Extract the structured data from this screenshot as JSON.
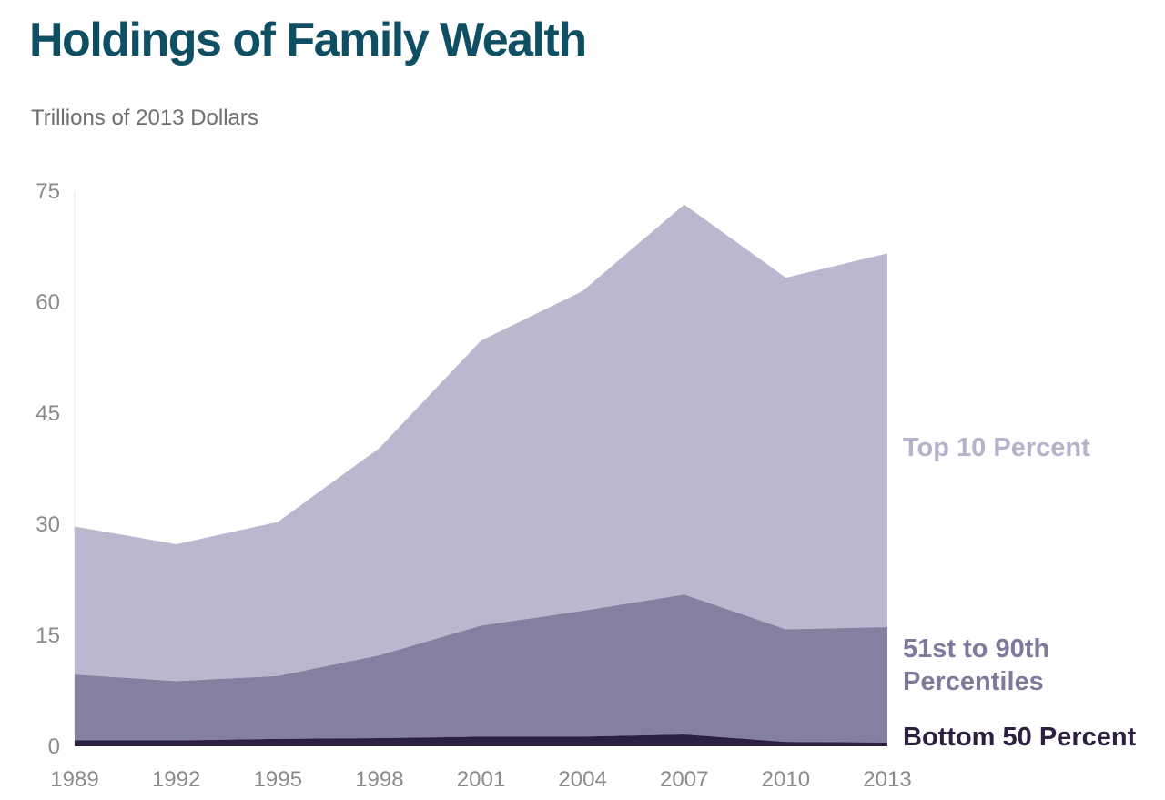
{
  "title": "Holdings of Family Wealth",
  "subtitle": "Trillions of 2013 Dollars",
  "colors": {
    "title": "#0f4f63",
    "top10": "#bab7cf",
    "mid": "#85809f",
    "bottom": "#2c2040",
    "top10_label": "#b6b2cc",
    "mid_label": "#7f7a9c",
    "bottom_label": "#2c2040"
  },
  "chart_data": {
    "type": "area",
    "stacked": true,
    "x": [
      "1989",
      "1992",
      "1995",
      "1998",
      "2001",
      "2004",
      "2007",
      "2010",
      "2013"
    ],
    "ylim": [
      0,
      75
    ],
    "yticks": [
      "0",
      "15",
      "30",
      "45",
      "60",
      "75"
    ],
    "series": [
      {
        "name": "Bottom 50 Percent",
        "values": [
          0.8,
          0.8,
          1.0,
          1.1,
          1.3,
          1.3,
          1.6,
          0.6,
          0.5
        ]
      },
      {
        "name": "51st to 90th Percentiles",
        "values": [
          8.9,
          8.0,
          8.5,
          11.2,
          15.0,
          17.0,
          18.9,
          15.2,
          15.6
        ]
      },
      {
        "name": "Top 10 Percent",
        "values": [
          20.0,
          18.5,
          20.8,
          28.0,
          38.5,
          43.2,
          52.7,
          47.5,
          50.5
        ]
      }
    ],
    "grid": false
  }
}
